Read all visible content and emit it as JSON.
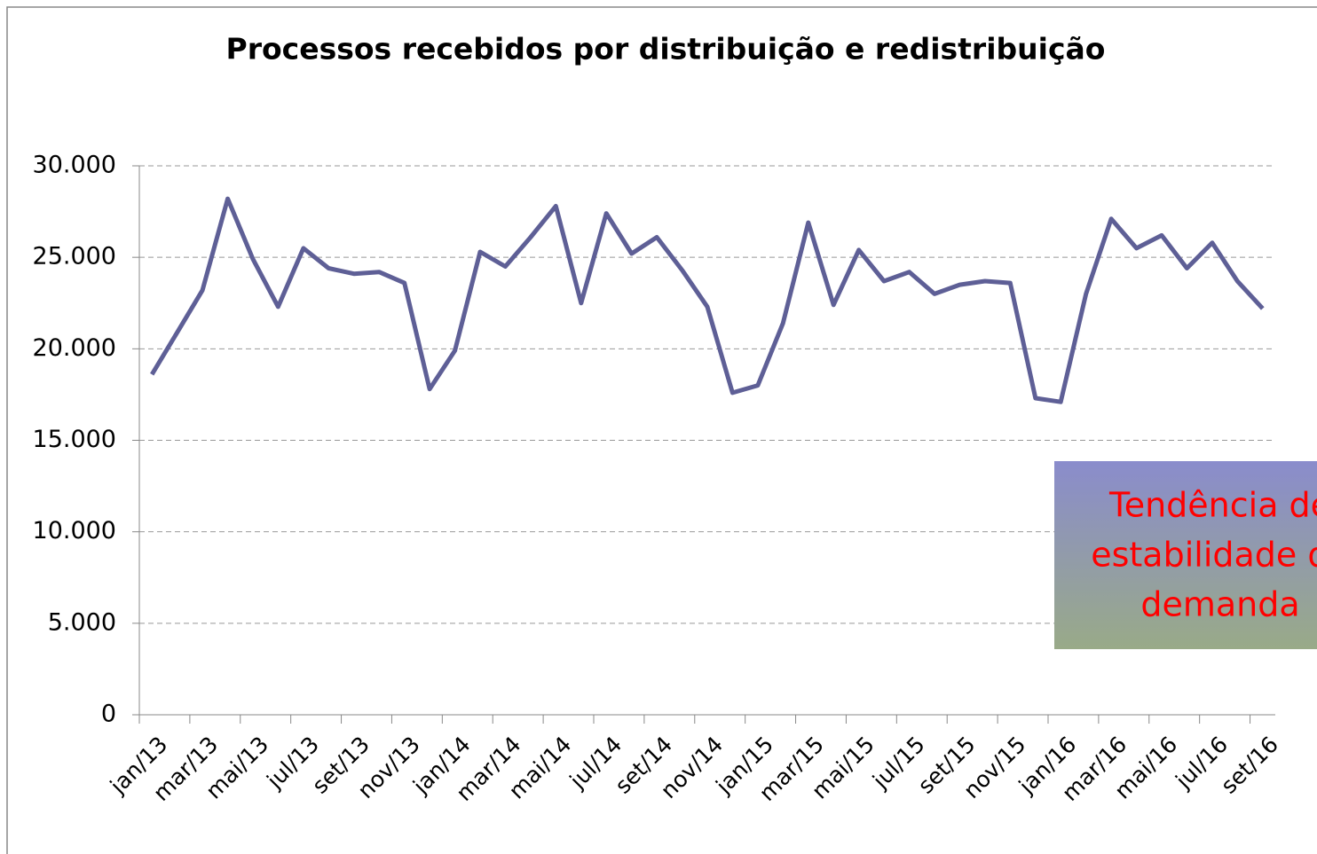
{
  "chart_data": {
    "type": "line",
    "title": "Processos recebidos por distribuição e redistribuição",
    "categories": [
      "jan/13",
      null,
      "mar/13",
      null,
      "mai/13",
      null,
      "jul/13",
      null,
      "set/13",
      null,
      "nov/13",
      null,
      "jan/14",
      null,
      "mar/14",
      null,
      "mai/14",
      null,
      "jul/14",
      null,
      "set/14",
      null,
      "nov/14",
      null,
      "jan/15",
      null,
      "mar/15",
      null,
      "mai/15",
      null,
      "jul/15",
      null,
      "set/15",
      null,
      "nov/15",
      null,
      "jan/16",
      null,
      "mar/16",
      null,
      "mai/16",
      null,
      "jul/16",
      null,
      "set/16"
    ],
    "series": [
      {
        "color": "#5e5f96",
        "values": [
          18600,
          20900,
          23200,
          28200,
          24900,
          22300,
          25500,
          24400,
          24100,
          24200,
          23600,
          17800,
          19900,
          25300,
          24500,
          26100,
          27800,
          22500,
          27400,
          25200,
          26100,
          24300,
          22300,
          17600,
          18000,
          21400,
          26900,
          22400,
          25400,
          23700,
          24200,
          23000,
          23500,
          23700,
          23600,
          17300,
          17100,
          23000,
          27100,
          25500,
          26200,
          24400,
          25800,
          23700,
          22200
        ]
      }
    ],
    "ylim": [
      0,
      30000
    ],
    "yticks": [
      0,
      {
        "value": 5000,
        "label": "5.000"
      },
      {
        "value": 10000,
        "label": "10.000"
      },
      {
        "value": 15000,
        "label": "15.000"
      },
      {
        "value": 20000,
        "label": "20.000"
      },
      {
        "value": 25000,
        "label": "25.000"
      },
      {
        "value": 30000,
        "label": "30.000"
      }
    ],
    "grid": true,
    "annotation": [
      "Tendência de",
      "estabilidade da",
      "demanda"
    ]
  }
}
